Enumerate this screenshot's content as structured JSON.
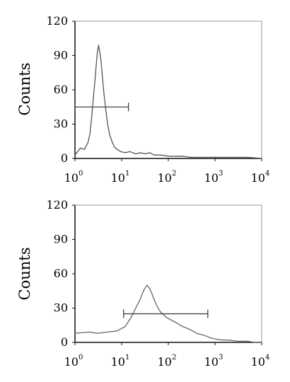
{
  "chart_data": [
    {
      "type": "line",
      "title": "",
      "ylabel": "Counts",
      "xlabel": "",
      "x_scale": "log",
      "xlim": [
        1,
        10000
      ],
      "ylim": [
        0,
        120
      ],
      "y_ticks": [
        "0",
        "30",
        "60",
        "90",
        "120"
      ],
      "x_ticks": [
        {
          "base": "10",
          "exp": "0"
        },
        {
          "base": "10",
          "exp": "1"
        },
        {
          "base": "10",
          "exp": "2"
        },
        {
          "base": "10",
          "exp": "3"
        },
        {
          "base": "10",
          "exp": "4"
        }
      ],
      "series": [
        {
          "color": "#555555",
          "x": [
            1.0,
            1.3,
            1.6,
            1.9,
            2.1,
            2.3,
            2.5,
            2.7,
            2.9,
            3.0,
            3.2,
            3.4,
            3.6,
            3.8,
            4.1,
            4.5,
            5.0,
            5.6,
            6.3,
            7.0,
            8.0,
            9.5,
            12,
            15,
            20,
            25,
            32,
            40,
            50,
            70,
            100,
            150,
            200,
            300,
            500,
            1000,
            2000,
            5000,
            10000
          ],
          "y": [
            3,
            9,
            8,
            14,
            22,
            38,
            55,
            70,
            85,
            92,
            99,
            93,
            86,
            75,
            60,
            45,
            30,
            20,
            14,
            10,
            8,
            6,
            5,
            6,
            4,
            5,
            4,
            5,
            3,
            3,
            2,
            2,
            2,
            1,
            1,
            1,
            1,
            1,
            0
          ]
        }
      ],
      "gate": {
        "x": [
          1.0,
          14
        ],
        "y": 45
      }
    },
    {
      "type": "line",
      "title": "",
      "ylabel": "Counts",
      "xlabel": "",
      "x_scale": "log",
      "xlim": [
        1,
        10000
      ],
      "ylim": [
        0,
        120
      ],
      "y_ticks": [
        "0",
        "30",
        "60",
        "90",
        "120"
      ],
      "x_ticks": [
        {
          "base": "10",
          "exp": "0"
        },
        {
          "base": "10",
          "exp": "1"
        },
        {
          "base": "10",
          "exp": "2"
        },
        {
          "base": "10",
          "exp": "3"
        },
        {
          "base": "10",
          "exp": "4"
        }
      ],
      "series": [
        {
          "color": "#666666",
          "x": [
            1.0,
            2.0,
            3.0,
            5.0,
            8.0,
            12,
            16,
            20,
            25,
            30,
            35,
            40,
            45,
            50,
            60,
            70,
            90,
            110,
            150,
            200,
            300,
            400,
            600,
            800,
            1000,
            1500,
            2000,
            3000,
            5000,
            7000,
            10000
          ],
          "y": [
            8,
            9,
            8,
            9,
            10,
            14,
            22,
            30,
            38,
            46,
            50,
            47,
            42,
            37,
            30,
            26,
            22,
            20,
            17,
            14,
            11,
            8,
            6,
            4,
            3,
            2,
            2,
            1,
            1,
            0,
            0
          ]
        }
      ],
      "gate": {
        "x": [
          11,
          700
        ],
        "y": 25
      }
    }
  ]
}
